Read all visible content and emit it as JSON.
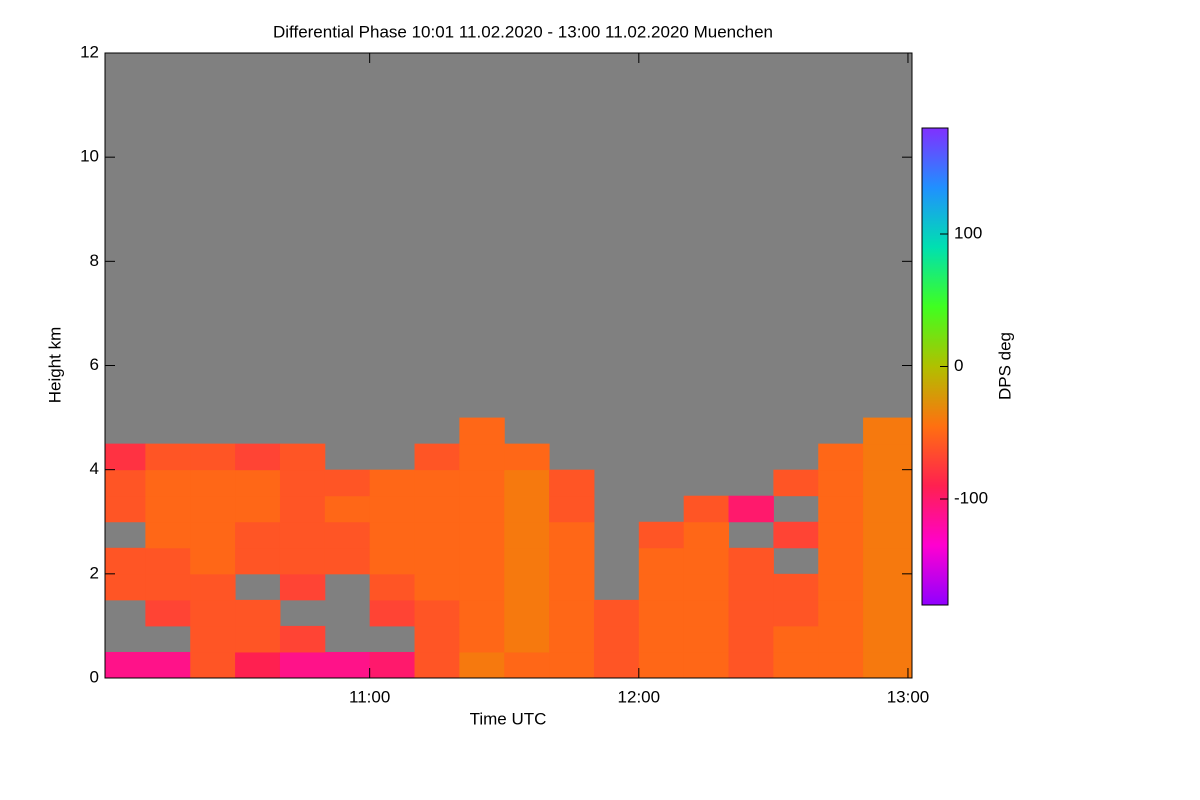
{
  "chart_data": {
    "type": "heatmap",
    "title": "Differential Phase   10:01 11.02.2020 - 13:00 11.02.2020 Muenchen",
    "xlabel": "Time UTC",
    "ylabel": "Height km",
    "colorbar_label": "DPS deg",
    "x": [
      10.0167,
      10.1667,
      10.3333,
      10.5,
      10.6667,
      10.8333,
      11,
      11.1667,
      11.3333,
      11.5,
      11.6667,
      11.8333,
      12,
      12.1667,
      12.3333,
      12.5,
      12.6667,
      12.8333,
      13.015
    ],
    "y": [
      0,
      0.5,
      1,
      1.5,
      2,
      2.5,
      3,
      3.5,
      4,
      4.5,
      5
    ],
    "values": [
      [
        -110,
        -110,
        -60,
        -90,
        -110,
        -110,
        -100,
        -60,
        -40,
        -50,
        -50,
        -60,
        -50,
        -50,
        -60,
        -50,
        -50,
        -40
      ],
      [
        null,
        null,
        -60,
        -60,
        -70,
        null,
        null,
        -60,
        -50,
        -40,
        -50,
        -60,
        -50,
        -50,
        -60,
        -50,
        -50,
        -40
      ],
      [
        null,
        -70,
        -60,
        -60,
        null,
        null,
        -70,
        -60,
        -50,
        -40,
        -50,
        -60,
        -50,
        -50,
        -60,
        -60,
        -50,
        -40
      ],
      [
        -60,
        -60,
        -60,
        null,
        -70,
        null,
        -60,
        -50,
        -50,
        -40,
        -50,
        null,
        -50,
        -50,
        -60,
        -60,
        -50,
        -40
      ],
      [
        -60,
        -60,
        -50,
        -60,
        -60,
        -60,
        -50,
        -50,
        -50,
        -40,
        -50,
        null,
        -50,
        -50,
        -60,
        null,
        -50,
        -40
      ],
      [
        null,
        -50,
        -50,
        -60,
        -60,
        -60,
        -50,
        -50,
        -50,
        -40,
        -50,
        null,
        -60,
        -50,
        null,
        -70,
        -50,
        -40
      ],
      [
        -60,
        -50,
        -50,
        -50,
        -60,
        -50,
        -50,
        -50,
        -50,
        -40,
        -60,
        null,
        null,
        -60,
        -100,
        null,
        -50,
        -40
      ],
      [
        -60,
        -50,
        -50,
        -50,
        -60,
        -60,
        -50,
        -50,
        -50,
        -40,
        -60,
        null,
        null,
        null,
        null,
        -60,
        -50,
        -40
      ],
      [
        -80,
        -60,
        -60,
        -70,
        -60,
        null,
        null,
        -60,
        -50,
        -50,
        null,
        null,
        null,
        null,
        null,
        null,
        -50,
        -40
      ],
      [
        null,
        null,
        null,
        null,
        null,
        null,
        null,
        null,
        -50,
        null,
        null,
        null,
        null,
        null,
        null,
        null,
        null,
        -40
      ]
    ],
    "xlim": [
      10.0167,
      13.015
    ],
    "xticks": [
      {
        "value": 11,
        "label": "11:00"
      },
      {
        "value": 12,
        "label": "12:00"
      },
      {
        "value": 13,
        "label": "13:00"
      }
    ],
    "ylim": [
      0,
      12
    ],
    "yticks": [
      0,
      2,
      4,
      6,
      8,
      10,
      12
    ],
    "clim": [
      -180,
      180
    ],
    "cticks": [
      -100,
      0,
      100
    ],
    "colorscale": [
      "#9000ff",
      "#ff00d0",
      "#ff2050",
      "#ff7010",
      "#b0c000",
      "#40ff20",
      "#00e0b0",
      "#2090ff",
      "#8030ff"
    ]
  }
}
